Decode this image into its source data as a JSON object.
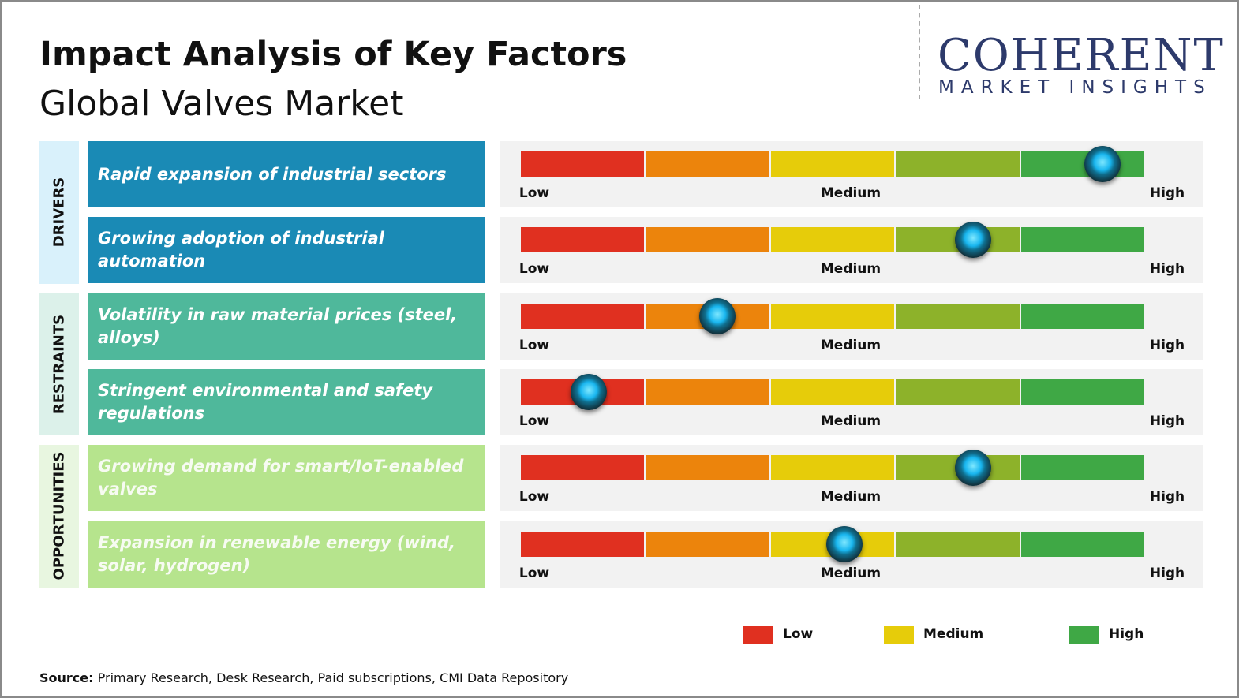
{
  "header": {
    "title": "Impact Analysis of Key Factors",
    "subtitle": "Global Valves Market"
  },
  "logo": {
    "name": "COHERENT",
    "tagline": "MARKET INSIGHTS"
  },
  "scale": {
    "colors": [
      "#e03020",
      "#ec840c",
      "#e6cc0a",
      "#8db22a",
      "#3fa845"
    ],
    "labels": [
      "Low",
      "Medium",
      "High"
    ]
  },
  "groups": [
    {
      "name": "DRIVERS",
      "band": "#d9f1fb",
      "box": "#1a8ab5",
      "text": "#ffffff",
      "factors": [
        {
          "label": "Rapid expansion  of industrial sectors",
          "impact": 4.65
        },
        {
          "label": "Growing adoption  of industrial automation",
          "impact": 3.62
        }
      ]
    },
    {
      "name": "RESTRAINTS",
      "band": "#dcf1ea",
      "box": "#4fb89b",
      "text": "#ffffff",
      "factors": [
        {
          "label": "Volatility in raw material prices (steel, alloys)",
          "impact": 1.57
        },
        {
          "label": "Stringent  environmental  and safety regulations",
          "impact": 0.54
        }
      ]
    },
    {
      "name": "OPPORTUNITIES",
      "band": "#e8f6e0",
      "box": "#b6e48d",
      "text": "#f7fbf2",
      "factors": [
        {
          "label": "Growing demand  for smart/IoT-enabled valves",
          "impact": 3.62
        },
        {
          "label": "Expansion  in renewable energy (wind, solar, hydrogen)",
          "impact": 2.59
        }
      ]
    }
  ],
  "legend": [
    {
      "label": "Low",
      "color": "#e03020"
    },
    {
      "label": "Medium",
      "color": "#e6cc0a"
    },
    {
      "label": "High",
      "color": "#3fa845"
    }
  ],
  "source": {
    "label": "Source:",
    "text": "Primary Research, Desk Research, Paid subscriptions, CMI Data Repository"
  }
}
